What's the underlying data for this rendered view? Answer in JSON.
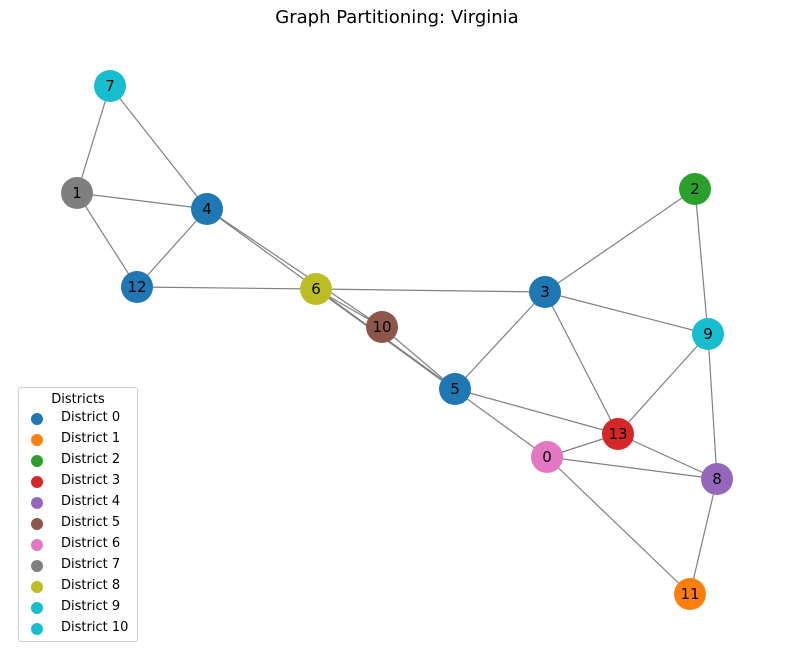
{
  "title": "Graph Partitioning: Virginia",
  "legend": {
    "title": "Districts",
    "items": [
      {
        "label": "District 0",
        "color": "#1f77b4"
      },
      {
        "label": "District 1",
        "color": "#ff7f0e"
      },
      {
        "label": "District 2",
        "color": "#2ca02c"
      },
      {
        "label": "District 3",
        "color": "#d62728"
      },
      {
        "label": "District 4",
        "color": "#9467bd"
      },
      {
        "label": "District 5",
        "color": "#8c564b"
      },
      {
        "label": "District 6",
        "color": "#e377c2"
      },
      {
        "label": "District 7",
        "color": "#7f7f7f"
      },
      {
        "label": "District 8",
        "color": "#bcbd22"
      },
      {
        "label": "District 9",
        "color": "#17becf"
      },
      {
        "label": "District 10",
        "color": "#17becf"
      }
    ]
  },
  "graph": {
    "nodes": [
      {
        "id": "0",
        "district": 6
      },
      {
        "id": "1",
        "district": 7
      },
      {
        "id": "2",
        "district": 2
      },
      {
        "id": "3",
        "district": 0
      },
      {
        "id": "4",
        "district": 0
      },
      {
        "id": "5",
        "district": 0
      },
      {
        "id": "6",
        "district": 8
      },
      {
        "id": "7",
        "district": 9
      },
      {
        "id": "8",
        "district": 4
      },
      {
        "id": "9",
        "district": 9
      },
      {
        "id": "10",
        "district": 5
      },
      {
        "id": "11",
        "district": 1
      },
      {
        "id": "12",
        "district": 0
      },
      {
        "id": "13",
        "district": 3
      }
    ],
    "edges": [
      [
        "7",
        "1"
      ],
      [
        "7",
        "4"
      ],
      [
        "1",
        "4"
      ],
      [
        "1",
        "12"
      ],
      [
        "4",
        "12"
      ],
      [
        "4",
        "10"
      ],
      [
        "4",
        "5"
      ],
      [
        "12",
        "6"
      ],
      [
        "6",
        "3"
      ],
      [
        "6",
        "10"
      ],
      [
        "6",
        "0"
      ],
      [
        "10",
        "5"
      ],
      [
        "2",
        "3"
      ],
      [
        "2",
        "9"
      ],
      [
        "3",
        "9"
      ],
      [
        "3",
        "5"
      ],
      [
        "3",
        "13"
      ],
      [
        "9",
        "13"
      ],
      [
        "9",
        "8"
      ],
      [
        "5",
        "13"
      ],
      [
        "0",
        "13"
      ],
      [
        "0",
        "8"
      ],
      [
        "0",
        "11"
      ],
      [
        "13",
        "8"
      ],
      [
        "8",
        "11"
      ]
    ],
    "edge_color": "#808080",
    "label_color": "#000000"
  }
}
